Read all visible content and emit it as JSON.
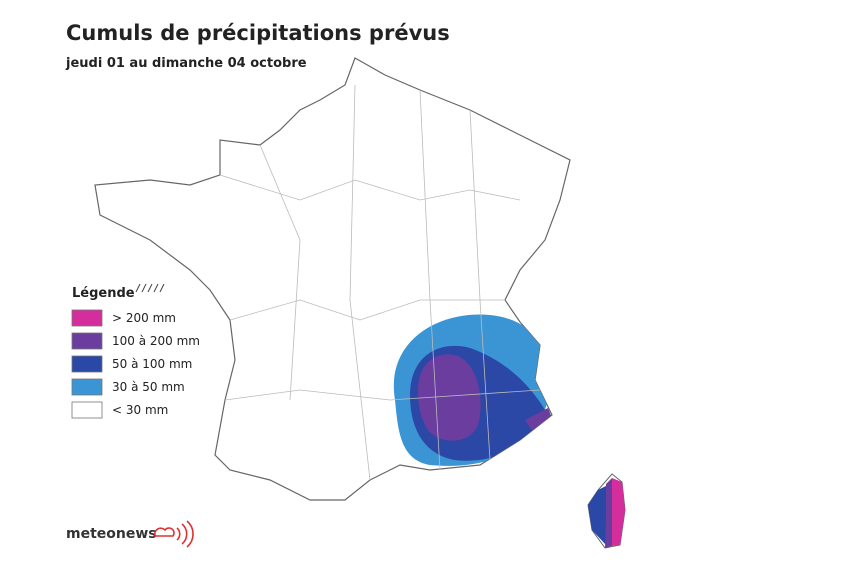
{
  "header": {
    "title": "Cumuls de précipitations prévus",
    "subtitle": "jeudi 01 au dimanche 04 octobre"
  },
  "legend": {
    "title": "Légende",
    "items": [
      {
        "label": "> 200 mm",
        "color": "#d42e9c"
      },
      {
        "label": "100 à 200 mm",
        "color": "#6a3d9e"
      },
      {
        "label": "50 à 100 mm",
        "color": "#2b48a6"
      },
      {
        "label": "30 à 50 mm",
        "color": "#3b95d4"
      },
      {
        "label": "< 30 mm",
        "color": "#ffffff"
      }
    ]
  },
  "brand": "meteonews"
}
